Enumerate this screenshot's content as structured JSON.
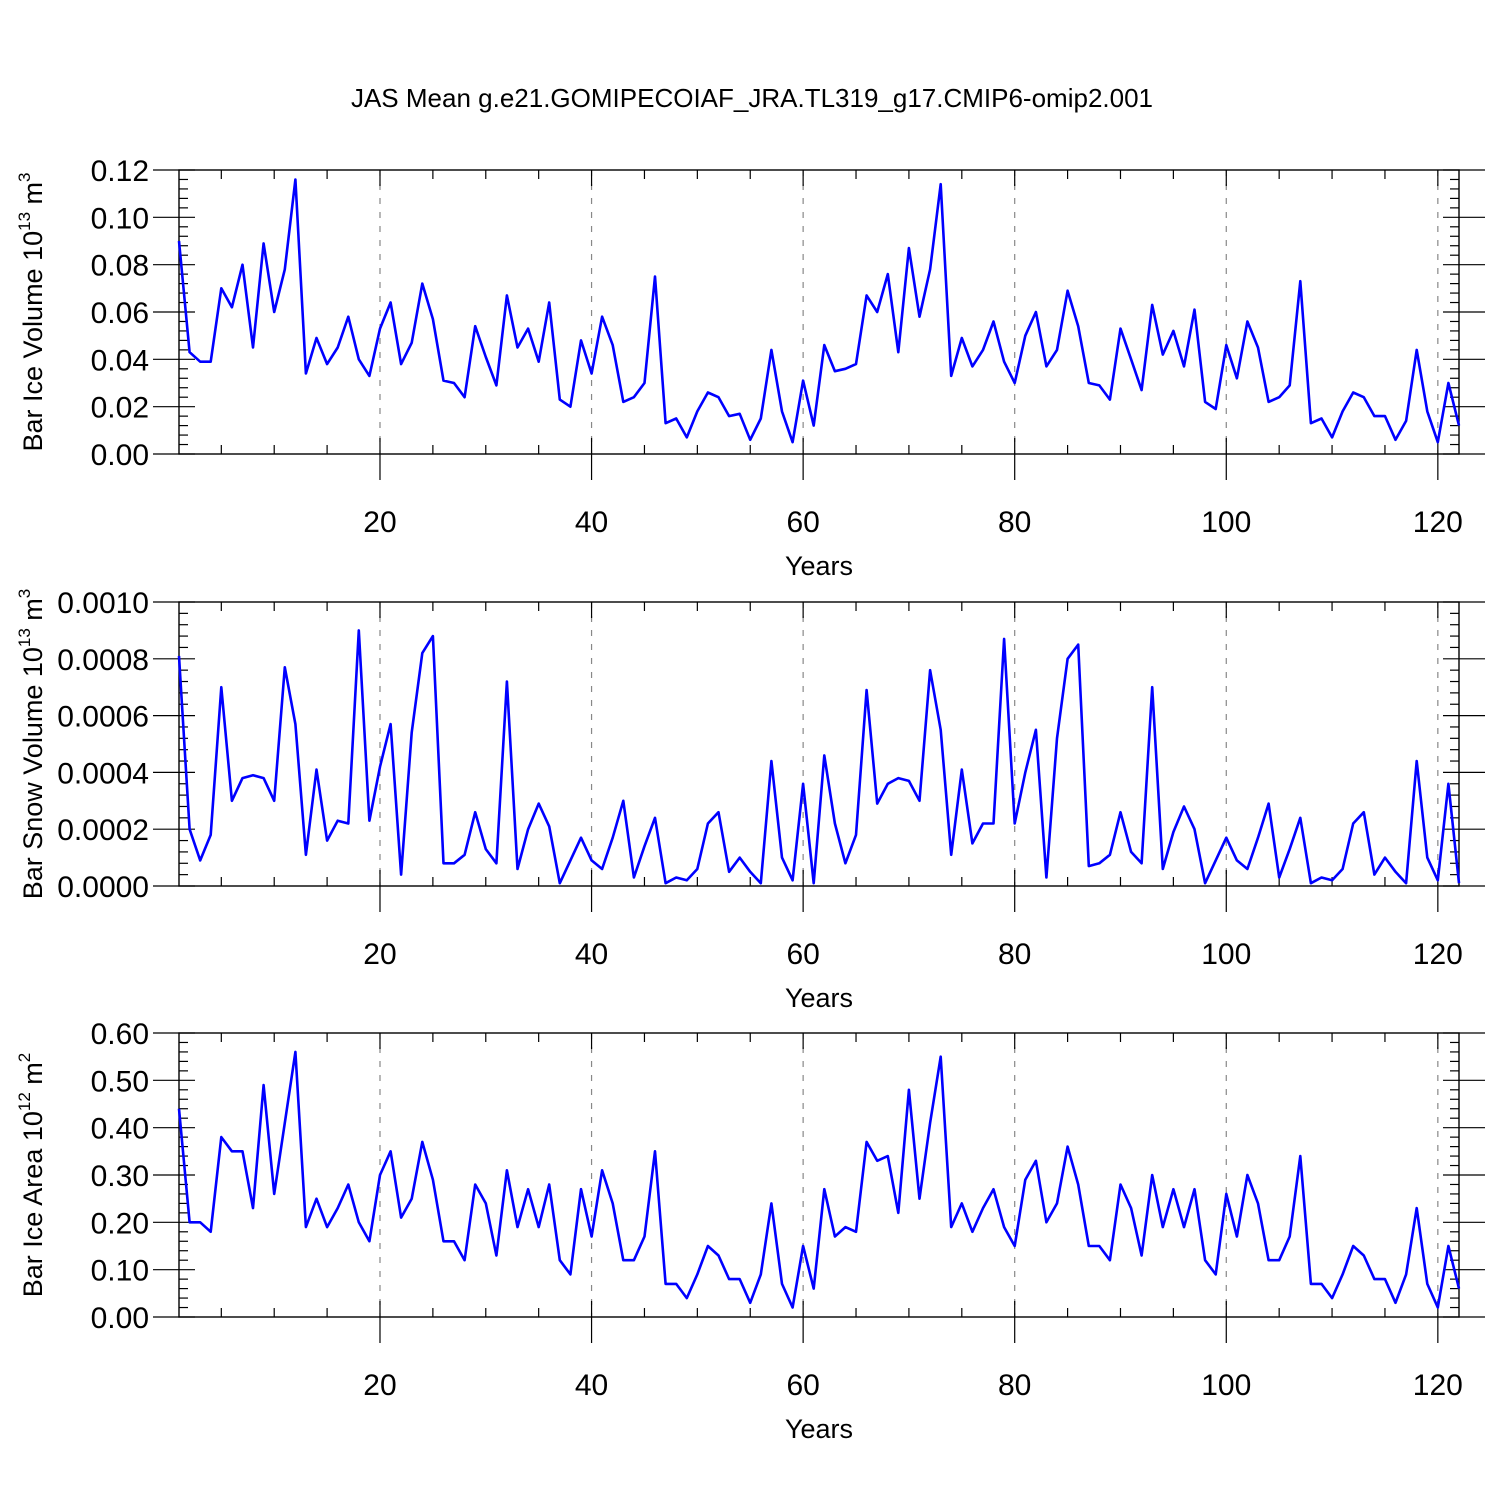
{
  "title": "JAS Mean g.e21.GOMIPECOIAF_JRA.TL319_g17.CMIP6-omip2.001",
  "line_color": "#0000ff",
  "chart_data": [
    {
      "type": "line",
      "xlabel": "Years",
      "ylabel": "Bar Ice Volume 10",
      "ylabel_exp": "13",
      "ylabel_unit": " m",
      "ylabel_unit_exp": "3",
      "xlim": [
        1,
        122
      ],
      "ylim": [
        0,
        0.12
      ],
      "yticks": [
        "0.00",
        "0.02",
        "0.04",
        "0.06",
        "0.08",
        "0.10",
        "0.12"
      ],
      "xticks": [
        "20",
        "40",
        "60",
        "80",
        "100",
        "120"
      ],
      "x_start": 1,
      "values": [
        0.09,
        0.043,
        0.039,
        0.039,
        0.07,
        0.062,
        0.08,
        0.045,
        0.089,
        0.06,
        0.078,
        0.116,
        0.034,
        0.049,
        0.038,
        0.045,
        0.058,
        0.04,
        0.033,
        0.053,
        0.064,
        0.038,
        0.047,
        0.072,
        0.057,
        0.031,
        0.03,
        0.024,
        0.054,
        0.041,
        0.029,
        0.067,
        0.045,
        0.053,
        0.039,
        0.064,
        0.023,
        0.02,
        0.048,
        0.034,
        0.058,
        0.046,
        0.022,
        0.024,
        0.03,
        0.075,
        0.013,
        0.015,
        0.007,
        0.018,
        0.026,
        0.024,
        0.016,
        0.017,
        0.006,
        0.015,
        0.044,
        0.018,
        0.005,
        0.031,
        0.012,
        0.046,
        0.035,
        0.036,
        0.038,
        0.067,
        0.06,
        0.076,
        0.043,
        0.087,
        0.058,
        0.078,
        0.114,
        0.033,
        0.049,
        0.037,
        0.044,
        0.056,
        0.039,
        0.03,
        0.05,
        0.06,
        0.037,
        0.044,
        0.069,
        0.054,
        0.03,
        0.029,
        0.023,
        0.053,
        0.04,
        0.027,
        0.063,
        0.042,
        0.052,
        0.037,
        0.061,
        0.022,
        0.019,
        0.046,
        0.032,
        0.056,
        0.045,
        0.022,
        0.024,
        0.029,
        0.073,
        0.013,
        0.015,
        0.007,
        0.018,
        0.026,
        0.024,
        0.016,
        0.016,
        0.006,
        0.014,
        0.044,
        0.018,
        0.005,
        0.03,
        0.012
      ]
    },
    {
      "type": "line",
      "xlabel": "Years",
      "ylabel": "Bar Snow Volume 10",
      "ylabel_exp": "13",
      "ylabel_unit": " m",
      "ylabel_unit_exp": "3",
      "xlim": [
        1,
        122
      ],
      "ylim": [
        0,
        0.001
      ],
      "yticks": [
        "0.0000",
        "0.0002",
        "0.0004",
        "0.0006",
        "0.0008",
        "0.0010"
      ],
      "xticks": [
        "20",
        "40",
        "60",
        "80",
        "100",
        "120"
      ],
      "x_start": 1,
      "values": [
        0.00081,
        0.0002,
        9e-05,
        0.00018,
        0.0007,
        0.0003,
        0.00038,
        0.00039,
        0.00038,
        0.0003,
        0.00077,
        0.00057,
        0.00011,
        0.00041,
        0.00016,
        0.00023,
        0.00022,
        0.0009,
        0.00023,
        0.00042,
        0.00057,
        4e-05,
        0.00054,
        0.00082,
        0.00088,
        8e-05,
        8e-05,
        0.00011,
        0.00026,
        0.00013,
        8e-05,
        0.00072,
        6e-05,
        0.0002,
        0.00029,
        0.00021,
        1e-05,
        9e-05,
        0.00017,
        9e-05,
        6e-05,
        0.00017,
        0.0003,
        3e-05,
        0.00014,
        0.00024,
        1e-05,
        3e-05,
        2e-05,
        6e-05,
        0.00022,
        0.00026,
        5e-05,
        0.0001,
        5e-05,
        1e-05,
        0.00044,
        0.0001,
        2e-05,
        0.00036,
        1e-05,
        0.00046,
        0.00022,
        8e-05,
        0.00018,
        0.00069,
        0.00029,
        0.00036,
        0.00038,
        0.00037,
        0.0003,
        0.00076,
        0.00055,
        0.00011,
        0.00041,
        0.00015,
        0.00022,
        0.00022,
        0.00087,
        0.00022,
        0.0004,
        0.00055,
        3e-05,
        0.00052,
        0.0008,
        0.00085,
        7e-05,
        8e-05,
        0.00011,
        0.00026,
        0.00012,
        8e-05,
        0.0007,
        6e-05,
        0.00019,
        0.00028,
        0.0002,
        1e-05,
        9e-05,
        0.00017,
        9e-05,
        6e-05,
        0.00017,
        0.00029,
        3e-05,
        0.00013,
        0.00024,
        1e-05,
        3e-05,
        2e-05,
        6e-05,
        0.00022,
        0.00026,
        4e-05,
        0.0001,
        5e-05,
        1e-05,
        0.00044,
        0.0001,
        2e-05,
        0.00036,
        1e-05
      ]
    },
    {
      "type": "line",
      "xlabel": "Years",
      "ylabel": "Bar Ice Area 10",
      "ylabel_exp": "12",
      "ylabel_unit": " m",
      "ylabel_unit_exp": "2",
      "xlim": [
        1,
        122
      ],
      "ylim": [
        0,
        0.6
      ],
      "yticks": [
        "0.00",
        "0.10",
        "0.20",
        "0.30",
        "0.40",
        "0.50",
        "0.60"
      ],
      "xticks": [
        "20",
        "40",
        "60",
        "80",
        "100",
        "120"
      ],
      "x_start": 1,
      "values": [
        0.44,
        0.2,
        0.2,
        0.18,
        0.38,
        0.35,
        0.35,
        0.23,
        0.49,
        0.26,
        0.41,
        0.56,
        0.19,
        0.25,
        0.19,
        0.23,
        0.28,
        0.2,
        0.16,
        0.3,
        0.35,
        0.21,
        0.25,
        0.37,
        0.29,
        0.16,
        0.16,
        0.12,
        0.28,
        0.24,
        0.13,
        0.31,
        0.19,
        0.27,
        0.19,
        0.28,
        0.12,
        0.09,
        0.27,
        0.17,
        0.31,
        0.24,
        0.12,
        0.12,
        0.17,
        0.35,
        0.07,
        0.07,
        0.04,
        0.09,
        0.15,
        0.13,
        0.08,
        0.08,
        0.03,
        0.09,
        0.24,
        0.07,
        0.02,
        0.15,
        0.06,
        0.27,
        0.17,
        0.19,
        0.18,
        0.37,
        0.33,
        0.34,
        0.22,
        0.48,
        0.25,
        0.41,
        0.55,
        0.19,
        0.24,
        0.18,
        0.23,
        0.27,
        0.19,
        0.15,
        0.29,
        0.33,
        0.2,
        0.24,
        0.36,
        0.28,
        0.15,
        0.15,
        0.12,
        0.28,
        0.23,
        0.13,
        0.3,
        0.19,
        0.27,
        0.19,
        0.27,
        0.12,
        0.09,
        0.26,
        0.17,
        0.3,
        0.24,
        0.12,
        0.12,
        0.17,
        0.34,
        0.07,
        0.07,
        0.04,
        0.09,
        0.15,
        0.13,
        0.08,
        0.08,
        0.03,
        0.09,
        0.23,
        0.07,
        0.02,
        0.15,
        0.06
      ]
    }
  ]
}
